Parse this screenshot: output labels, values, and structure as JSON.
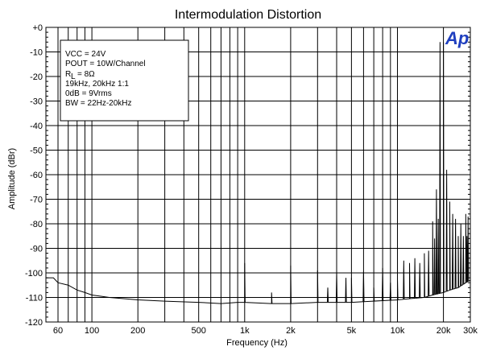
{
  "chart_data": {
    "type": "line",
    "title": "Intermodulation Distortion",
    "xlabel": "Frequency (Hz)",
    "ylabel": "Amplitude (dBr)",
    "xscale": "log",
    "xlim": [
      50,
      30000
    ],
    "ylim": [
      -120,
      0
    ],
    "grid": true,
    "x_ticks": [
      {
        "value": 60,
        "label": "60"
      },
      {
        "value": 100,
        "label": "100"
      },
      {
        "value": 200,
        "label": "200"
      },
      {
        "value": 500,
        "label": "500"
      },
      {
        "value": 1000,
        "label": "1k"
      },
      {
        "value": 2000,
        "label": "2k"
      },
      {
        "value": 5000,
        "label": "5k"
      },
      {
        "value": 10000,
        "label": "10k"
      },
      {
        "value": 20000,
        "label": "20k"
      },
      {
        "value": 30000,
        "label": "30k"
      }
    ],
    "y_ticks": [
      {
        "value": 0,
        "label": "+0"
      },
      {
        "value": -10,
        "label": "-10"
      },
      {
        "value": -20,
        "label": "-20"
      },
      {
        "value": -30,
        "label": "-30"
      },
      {
        "value": -40,
        "label": "-40"
      },
      {
        "value": -50,
        "label": "-50"
      },
      {
        "value": -60,
        "label": "-60"
      },
      {
        "value": -70,
        "label": "-70"
      },
      {
        "value": -80,
        "label": "-80"
      },
      {
        "value": -90,
        "label": "-90"
      },
      {
        "value": -100,
        "label": "-100"
      },
      {
        "value": -110,
        "label": "-110"
      },
      {
        "value": -120,
        "label": "-120"
      }
    ],
    "annotations": [
      "VCC = 24V",
      "POUT = 10W/Channel",
      "R",
      "L",
      "= 8Ω",
      "19kHz, 20kHz 1:1",
      "0dB = 9Vrms",
      "BW = 22Hz-20kHz"
    ],
    "logo": "Ap",
    "series": [
      {
        "color": "#000000",
        "baseline": [
          [
            50,
            -102
          ],
          [
            56,
            -102
          ],
          [
            60,
            -104
          ],
          [
            70,
            -105
          ],
          [
            80,
            -107
          ],
          [
            90,
            -108
          ],
          [
            100,
            -109
          ],
          [
            130,
            -110
          ],
          [
            200,
            -111
          ],
          [
            300,
            -111.5
          ],
          [
            500,
            -112
          ],
          [
            700,
            -112.5
          ],
          [
            900,
            -112
          ],
          [
            1000,
            -112
          ],
          [
            1500,
            -112.5
          ],
          [
            2000,
            -112.5
          ],
          [
            3000,
            -112
          ],
          [
            5000,
            -112
          ],
          [
            7000,
            -111.5
          ],
          [
            10000,
            -111
          ],
          [
            12000,
            -110.5
          ],
          [
            15000,
            -110
          ],
          [
            17000,
            -109
          ],
          [
            20000,
            -108
          ],
          [
            22000,
            -107
          ],
          [
            25000,
            -106
          ],
          [
            28000,
            -104
          ],
          [
            30000,
            -103
          ]
        ],
        "peaks": [
          [
            1000,
            -96
          ],
          [
            1500,
            -108
          ],
          [
            2000,
            -97
          ],
          [
            3000,
            -99
          ],
          [
            3500,
            -106
          ],
          [
            4000,
            -99.5
          ],
          [
            4600,
            -102
          ],
          [
            5000,
            -102
          ],
          [
            6000,
            -99.5
          ],
          [
            7000,
            -106
          ],
          [
            8000,
            -98
          ],
          [
            9000,
            -104
          ],
          [
            10000,
            -102
          ],
          [
            11000,
            -95
          ],
          [
            12000,
            -96
          ],
          [
            13000,
            -94
          ],
          [
            14000,
            -96
          ],
          [
            15000,
            -92
          ],
          [
            16000,
            -91
          ],
          [
            17000,
            -79
          ],
          [
            17500,
            -86
          ],
          [
            18000,
            -66
          ],
          [
            18500,
            -78
          ],
          [
            19000,
            -6
          ],
          [
            20000,
            -6
          ],
          [
            21000,
            -58
          ],
          [
            22000,
            -71
          ],
          [
            23000,
            -76
          ],
          [
            24000,
            -78
          ],
          [
            25000,
            -85
          ],
          [
            26000,
            -80
          ],
          [
            27000,
            -85
          ],
          [
            28000,
            -76
          ],
          [
            28500,
            -85
          ],
          [
            29000,
            -77
          ],
          [
            30000,
            -77
          ]
        ]
      }
    ]
  }
}
